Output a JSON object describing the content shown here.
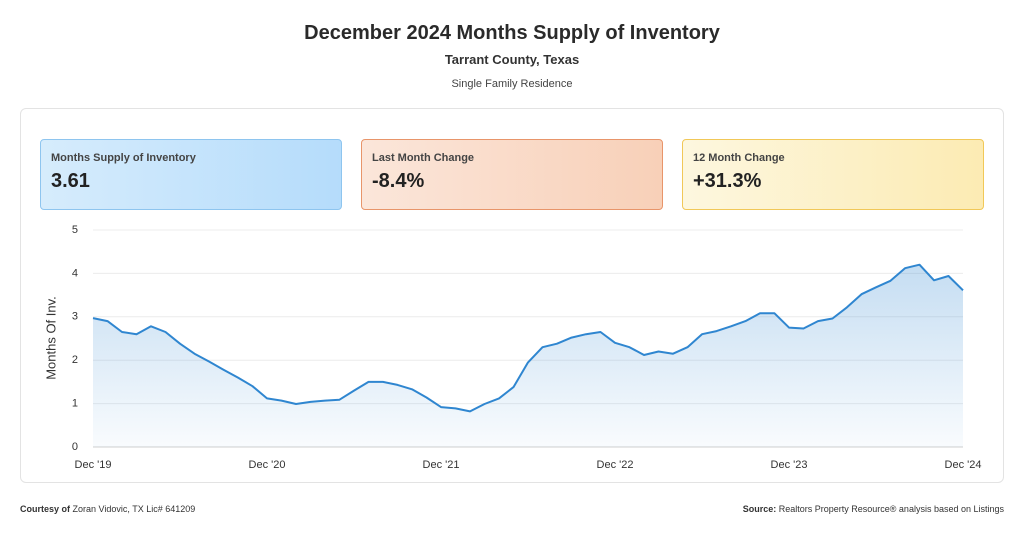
{
  "header": {
    "title": "December 2024 Months Supply of Inventory",
    "location": "Tarrant County, Texas",
    "property_type": "Single Family Residence"
  },
  "cards": [
    {
      "label": "Months Supply of Inventory",
      "value": "3.61"
    },
    {
      "label": "Last Month Change",
      "value": "-8.4%"
    },
    {
      "label": "12 Month Change",
      "value": "+31.3%"
    }
  ],
  "chart_data": {
    "type": "line",
    "fill": true,
    "color": "#2f86d0",
    "y_label": "Months Of Inv.",
    "categories": [
      "Dec '19",
      null,
      null,
      null,
      null,
      null,
      null,
      null,
      null,
      null,
      null,
      null,
      "Dec '20",
      null,
      null,
      null,
      null,
      null,
      null,
      null,
      null,
      null,
      null,
      null,
      "Dec '21",
      null,
      null,
      null,
      null,
      null,
      null,
      null,
      null,
      null,
      null,
      null,
      "Dec '22",
      null,
      null,
      null,
      null,
      null,
      null,
      null,
      null,
      null,
      null,
      null,
      "Dec '23",
      null,
      null,
      null,
      null,
      null,
      null,
      null,
      null,
      null,
      null,
      null,
      "Dec '24"
    ],
    "values": [
      2.97,
      2.9,
      2.65,
      2.6,
      2.78,
      2.65,
      2.38,
      2.15,
      1.97,
      1.78,
      1.6,
      1.4,
      1.12,
      1.07,
      0.99,
      1.04,
      1.07,
      1.09,
      1.3,
      1.5,
      1.5,
      1.43,
      1.33,
      1.14,
      0.92,
      0.89,
      0.82,
      0.99,
      1.12,
      1.38,
      1.95,
      2.3,
      2.38,
      2.52,
      2.6,
      2.65,
      2.4,
      2.3,
      2.12,
      2.2,
      2.15,
      2.3,
      2.6,
      2.67,
      2.78,
      2.9,
      3.08,
      3.08,
      2.75,
      2.73,
      2.9,
      2.96,
      3.22,
      3.52,
      3.68,
      3.83,
      4.12,
      4.2,
      3.84,
      3.94,
      3.61
    ],
    "ylim": [
      0,
      5
    ],
    "yticks": [
      0,
      1,
      2,
      3,
      4,
      5
    ],
    "grid": true
  },
  "footer": {
    "credit_label": "Courtesy of",
    "credit": "Zoran Vidovic, TX Lic# 641209",
    "source_label": "Source:",
    "source": "Realtors Property Resource® analysis based on Listings"
  }
}
